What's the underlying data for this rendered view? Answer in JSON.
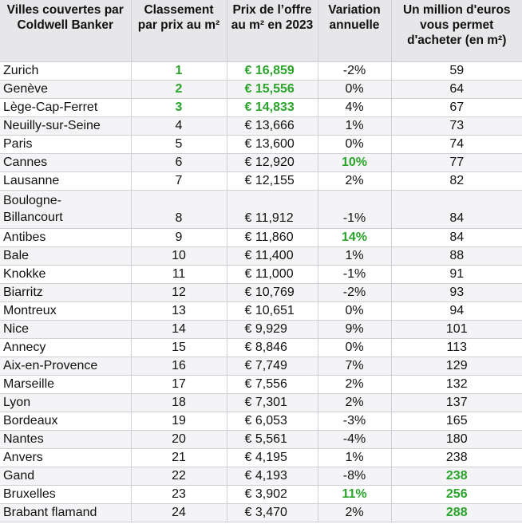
{
  "headers": [
    "Villes couvertes par Coldwell Banker",
    "Classement par prix au m²",
    "Prix de l’offre au m² en 2023",
    "Variation annuelle",
    "Un million d'euros vous permet d'acheter (en m²)"
  ],
  "highlight_color": "#2aa42a",
  "rows": [
    {
      "city": "Zurich",
      "rank": "1",
      "price": "€ 16,859",
      "variation": "-2%",
      "m2": "59",
      "hl": [
        "rank",
        "price"
      ]
    },
    {
      "city": "Genève",
      "rank": "2",
      "price": "€ 15,556",
      "variation": "0%",
      "m2": "64",
      "hl": [
        "rank",
        "price"
      ]
    },
    {
      "city": "Lège-Cap-Ferret",
      "rank": "3",
      "price": "€ 14,833",
      "variation": "4%",
      "m2": "67",
      "hl": [
        "rank",
        "price"
      ]
    },
    {
      "city": "Neuilly-sur-Seine",
      "rank": "4",
      "price": "€ 13,666",
      "variation": "1%",
      "m2": "73",
      "hl": []
    },
    {
      "city": "Paris",
      "rank": "5",
      "price": "€ 13,600",
      "variation": "0%",
      "m2": "74",
      "hl": []
    },
    {
      "city": "Cannes",
      "rank": "6",
      "price": "€ 12,920",
      "variation": "10%",
      "m2": "77",
      "hl": [
        "variation"
      ]
    },
    {
      "city": "Lausanne",
      "rank": "7",
      "price": "€ 12,155",
      "variation": "2%",
      "m2": "82",
      "hl": []
    },
    {
      "city": "Boulogne-Billancourt",
      "city_lines": [
        "Boulogne-",
        "Billancourt"
      ],
      "rank": "8",
      "price": "€ 11,912",
      "variation": "-1%",
      "m2": "84",
      "hl": []
    },
    {
      "city": "Antibes",
      "rank": "9",
      "price": "€ 11,860",
      "variation": "14%",
      "m2": "84",
      "hl": [
        "variation"
      ]
    },
    {
      "city": "Bale",
      "rank": "10",
      "price": "€ 11,400",
      "variation": "1%",
      "m2": "88",
      "hl": []
    },
    {
      "city": "Knokke",
      "rank": "11",
      "price": "€ 11,000",
      "variation": "-1%",
      "m2": "91",
      "hl": []
    },
    {
      "city": "Biarritz",
      "rank": "12",
      "price": "€ 10,769",
      "variation": "-2%",
      "m2": "93",
      "hl": []
    },
    {
      "city": "Montreux",
      "rank": "13",
      "price": "€ 10,651",
      "variation": "0%",
      "m2": "94",
      "hl": []
    },
    {
      "city": "Nice",
      "rank": "14",
      "price": "€ 9,929",
      "variation": "9%",
      "m2": "101",
      "hl": []
    },
    {
      "city": "Annecy",
      "rank": "15",
      "price": "€ 8,846",
      "variation": "0%",
      "m2": "113",
      "hl": []
    },
    {
      "city": "Aix-en-Provence",
      "rank": "16",
      "price": "€ 7,749",
      "variation": "7%",
      "m2": "129",
      "hl": []
    },
    {
      "city": "Marseille",
      "rank": "17",
      "price": "€ 7,556",
      "variation": "2%",
      "m2": "132",
      "hl": []
    },
    {
      "city": "Lyon",
      "rank": "18",
      "price": "€ 7,301",
      "variation": "2%",
      "m2": "137",
      "hl": []
    },
    {
      "city": "Bordeaux",
      "rank": "19",
      "price": "€ 6,053",
      "variation": "-3%",
      "m2": "165",
      "hl": []
    },
    {
      "city": "Nantes",
      "rank": "20",
      "price": "€ 5,561",
      "variation": "-4%",
      "m2": "180",
      "hl": []
    },
    {
      "city": "Anvers",
      "rank": "21",
      "price": "€ 4,195",
      "variation": "1%",
      "m2": "238",
      "hl": []
    },
    {
      "city": "Gand",
      "rank": "22",
      "price": "€ 4,193",
      "variation": "-8%",
      "m2": "238",
      "hl": [
        "m2"
      ]
    },
    {
      "city": "Bruxelles",
      "rank": "23",
      "price": "€ 3,902",
      "variation": "11%",
      "m2": "256",
      "hl": [
        "variation",
        "m2"
      ]
    },
    {
      "city": "Brabant flamand",
      "rank": "24",
      "price": "€ 3,470",
      "variation": "2%",
      "m2": "288",
      "hl": [
        "m2"
      ]
    }
  ]
}
